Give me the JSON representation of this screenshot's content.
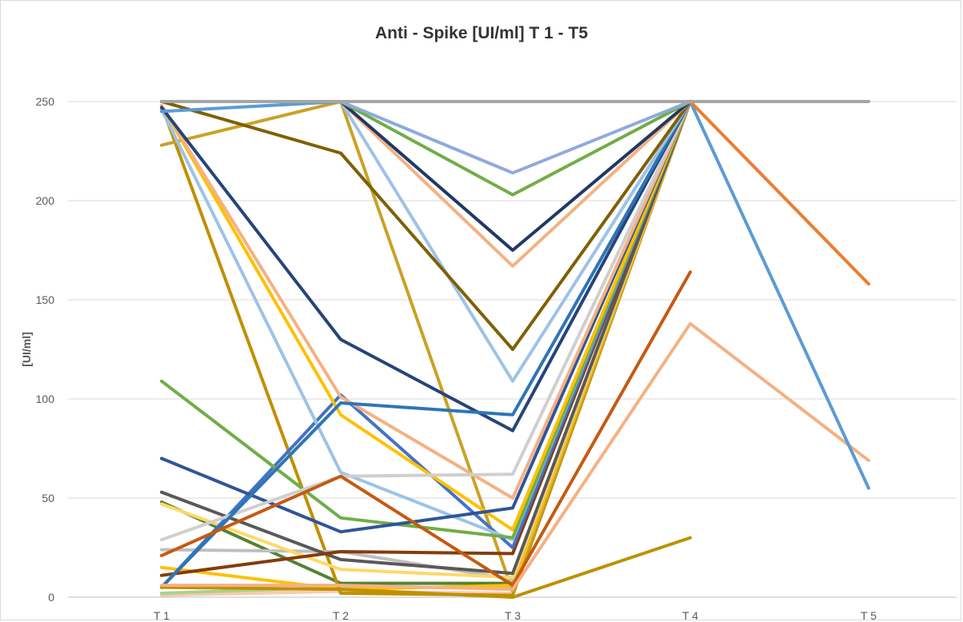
{
  "chart_data": {
    "type": "line",
    "title": "Anti - Spike [UI/ml] T 1 - T5",
    "xlabel": "",
    "ylabel": "[UI/ml]",
    "categories": [
      "T 1",
      "T 2",
      "T 3",
      "T 4",
      "T 5"
    ],
    "ylim": [
      0,
      250
    ],
    "yticks": [
      0,
      50,
      100,
      150,
      200,
      250
    ],
    "grid": true,
    "legend": "none",
    "series": [
      {
        "color": "#A5A5A5",
        "values": [
          250,
          250,
          250,
          250,
          250
        ]
      },
      {
        "color": "#ED7D31",
        "values": [
          250,
          250,
          250,
          250,
          158
        ]
      },
      {
        "color": "#5B9BD5",
        "values": [
          245,
          250,
          250,
          250,
          55
        ]
      },
      {
        "color": "#F4B183",
        "values": [
          6,
          6,
          4,
          138,
          69
        ]
      },
      {
        "color": "#C55A11",
        "values": [
          21,
          61,
          6,
          164,
          null
        ]
      },
      {
        "color": "#BF9000",
        "values": [
          5,
          4,
          0,
          30,
          null
        ]
      },
      {
        "color": "#8FAADC",
        "values": [
          250,
          250,
          214,
          250,
          null
        ]
      },
      {
        "color": "#70AD47",
        "values": [
          250,
          250,
          203,
          250,
          null
        ]
      },
      {
        "color": "#203864",
        "values": [
          250,
          250,
          175,
          250,
          null
        ]
      },
      {
        "color": "#F4B183",
        "values": [
          250,
          250,
          167,
          250,
          null
        ]
      },
      {
        "color": "#7F6000",
        "values": [
          250,
          224,
          125,
          250,
          null
        ]
      },
      {
        "color": "#9DC3E6",
        "values": [
          250,
          250,
          109,
          250,
          null
        ]
      },
      {
        "color": "#2E75B6",
        "values": [
          5,
          98,
          92,
          250,
          null
        ]
      },
      {
        "color": "#264478",
        "values": [
          247,
          130,
          84,
          250,
          null
        ]
      },
      {
        "color": "#D0CECE",
        "values": [
          29,
          61,
          62,
          250,
          null
        ]
      },
      {
        "color": "#F4B183",
        "values": [
          248,
          101,
          50,
          250,
          null
        ]
      },
      {
        "color": "#2F5597",
        "values": [
          70,
          33,
          45,
          250,
          null
        ]
      },
      {
        "color": "#FFC000",
        "values": [
          248,
          92,
          34,
          250,
          null
        ]
      },
      {
        "color": "#70AD47",
        "values": [
          109,
          40,
          30,
          250,
          null
        ]
      },
      {
        "color": "#9DC3E6",
        "values": [
          246,
          63,
          29,
          250,
          null
        ]
      },
      {
        "color": "#4472C4",
        "values": [
          5,
          102,
          25,
          250,
          null
        ]
      },
      {
        "color": "#843C0C",
        "values": [
          11,
          23,
          22,
          250,
          null
        ]
      },
      {
        "color": "#595959",
        "values": [
          53,
          19,
          12,
          250,
          null
        ]
      },
      {
        "color": "#FFD966",
        "values": [
          47,
          14,
          10,
          250,
          null
        ]
      },
      {
        "color": "#BFBFBF",
        "values": [
          24,
          23,
          9,
          250,
          null
        ]
      },
      {
        "color": "#FFC000",
        "values": [
          15,
          4,
          6,
          250,
          null
        ]
      },
      {
        "color": "#C9A227",
        "values": [
          228,
          250,
          3,
          250,
          null
        ]
      },
      {
        "color": "#BF9000",
        "values": [
          248,
          2,
          1,
          250,
          null
        ]
      },
      {
        "color": "#548235",
        "values": [
          48,
          7,
          7,
          250,
          null
        ]
      },
      {
        "color": "#A9D18E",
        "values": [
          2,
          5,
          5,
          250,
          null
        ]
      },
      {
        "color": "#F8CBAD",
        "values": [
          1,
          3,
          2,
          250,
          null
        ]
      }
    ]
  }
}
